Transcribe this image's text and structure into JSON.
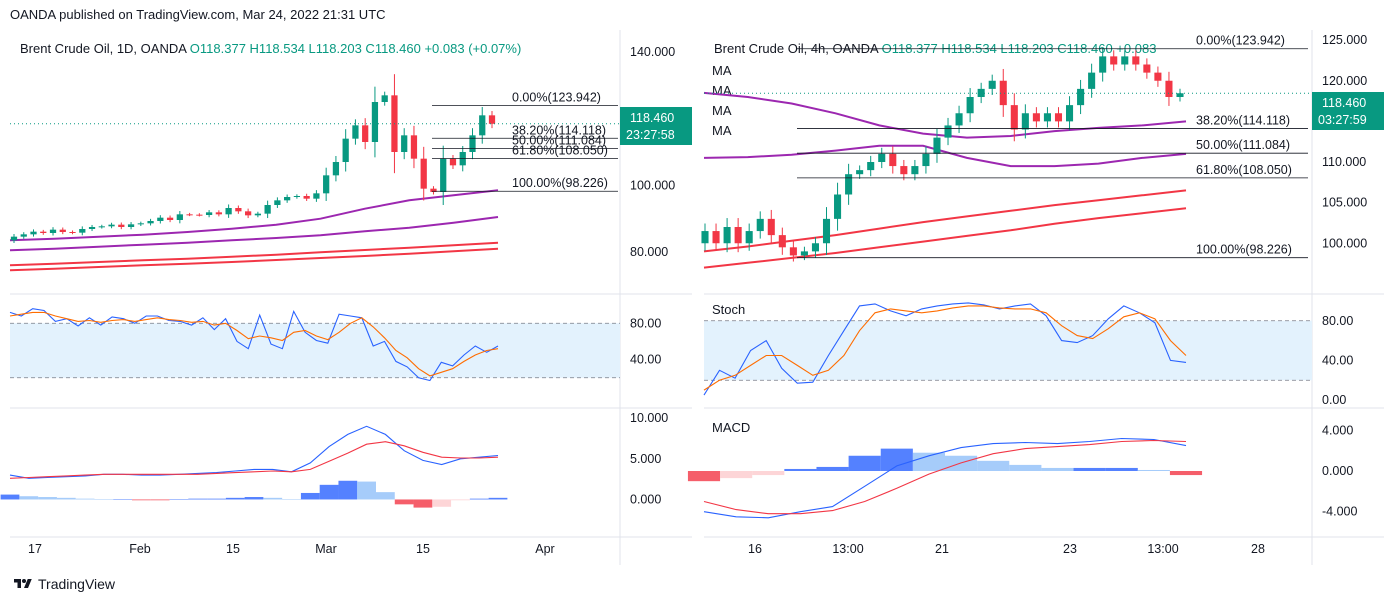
{
  "header": {
    "text": "OANDA published on TradingView.com, Mar 24, 2022 21:31 UTC"
  },
  "footer": {
    "brand": "TradingView",
    "icon": "tradingview-logo-icon"
  },
  "colors": {
    "up": "#089981",
    "down": "#f23645",
    "ma_purple": "#9c27b0",
    "ma_red": "#f23645",
    "stoch_k": "#2962ff",
    "stoch_d": "#ff6d00",
    "macd": "#2962ff",
    "signal": "#f23645",
    "band": "#e3f2fd",
    "price_badge": "#089981"
  },
  "chart_data": [
    {
      "type": "candlestick",
      "panel": "left-daily",
      "title": "Brent Crude Oil, 1D, OANDA",
      "ohlc_label": {
        "O": "O118.377",
        "H": "H118.534",
        "L": "L118.203",
        "C": "C118.460",
        "change": "+0.083 (+0.07%)"
      },
      "x_ticks": [
        "17",
        "Feb",
        "15",
        "Mar",
        "15",
        "Apr"
      ],
      "y_ticks": [
        "140.000",
        "100.000",
        "80.000"
      ],
      "ylim": [
        68,
        146
      ],
      "price_badge": {
        "price": "118.460",
        "countdown": "23:27:58"
      },
      "fib_levels": [
        {
          "label": "0.00%(123.942)",
          "value": 123.942
        },
        {
          "label": "38.20%(114.118)",
          "value": 114.118
        },
        {
          "label": "50.00%(111.084)",
          "value": 111.084
        },
        {
          "label": "61.80%(108.050)",
          "value": 108.05
        },
        {
          "label": "100.00%(98.226)",
          "value": 98.226
        }
      ],
      "candles_close": [
        84.6,
        85.3,
        86.1,
        85.7,
        86.7,
        86.0,
        85.8,
        86.9,
        87.5,
        87.7,
        88.2,
        87.5,
        88.3,
        88.6,
        89.3,
        90.3,
        89.6,
        91.3,
        91.2,
        91.1,
        91.9,
        91.3,
        93.2,
        92.2,
        91.0,
        91.5,
        94.1,
        95.5,
        96.5,
        96.8,
        96.0,
        97.6,
        103.0,
        107.0,
        114.0,
        118.0,
        113.0,
        125.0,
        127.0,
        110.0,
        115.0,
        108.0,
        99.0,
        98.0,
        108.0,
        106.0,
        110.0,
        115.0,
        121.0,
        118.46
      ],
      "candles_open": [
        83.5,
        84.6,
        85.3,
        86.1,
        85.7,
        86.7,
        86.0,
        85.8,
        86.9,
        87.5,
        87.7,
        88.2,
        87.5,
        88.3,
        88.6,
        89.3,
        90.3,
        89.6,
        91.3,
        91.2,
        91.1,
        91.9,
        91.3,
        93.2,
        92.2,
        91.0,
        91.5,
        94.1,
        95.5,
        96.5,
        96.8,
        96.0,
        97.6,
        103.0,
        107.0,
        114.0,
        118.0,
        113.0,
        125.0,
        127.0,
        110.0,
        115.0,
        108.0,
        99.0,
        98.0,
        108.0,
        106.0,
        110.0,
        115.0,
        121.0
      ],
      "ma_series": [
        {
          "color": "purple",
          "values": [
            83.5,
            84.0,
            84.6,
            85.2,
            86.0,
            87.0,
            88.2,
            90.0,
            93.0,
            95.5,
            97.0,
            98.5
          ]
        },
        {
          "color": "purple",
          "values": [
            80.5,
            81.0,
            81.6,
            82.2,
            82.8,
            83.5,
            84.2,
            85.0,
            86.2,
            87.3,
            88.8,
            90.5
          ]
        },
        {
          "color": "red",
          "values": [
            76.0,
            76.5,
            77.0,
            77.5,
            78.0,
            78.6,
            79.2,
            79.9,
            80.6,
            81.3,
            82.0,
            82.8
          ]
        },
        {
          "color": "red",
          "values": [
            74.5,
            75.0,
            75.5,
            76.0,
            76.5,
            77.0,
            77.6,
            78.2,
            78.8,
            79.5,
            80.2,
            81.0
          ]
        }
      ],
      "stoch": {
        "y_ticks": [
          "80.00",
          "40.00"
        ],
        "k": [
          92,
          88,
          96,
          94,
          82,
          85,
          77,
          86,
          78,
          87,
          85,
          80,
          88,
          88,
          83,
          82,
          78,
          86,
          73,
          85,
          60,
          52,
          89,
          57,
          52,
          93,
          70,
          61,
          58,
          90,
          88,
          86,
          55,
          60,
          38,
          32,
          20,
          17,
          37,
          33,
          45,
          55,
          48,
          55
        ],
        "d": [
          88,
          90,
          92,
          92,
          88,
          85,
          82,
          83,
          81,
          83,
          84,
          82,
          84,
          86,
          84,
          83,
          81,
          82,
          78,
          80,
          72,
          63,
          66,
          64,
          61,
          70,
          72,
          66,
          62,
          70,
          80,
          86,
          76,
          64,
          50,
          42,
          30,
          22,
          26,
          30,
          38,
          45,
          50,
          52
        ]
      },
      "macd": {
        "y_ticks": [
          "10.000",
          "5.000",
          "0.000"
        ],
        "macd": [
          3.0,
          2.6,
          2.7,
          2.8,
          2.9,
          3.1,
          3.1,
          3.0,
          3.0,
          3.1,
          3.2,
          3.3,
          3.5,
          3.7,
          3.7,
          3.4,
          4.5,
          6.5,
          8.0,
          9.0,
          8.0,
          6.0,
          4.8,
          4.3,
          5.0,
          5.2,
          5.4
        ],
        "signal": [
          2.6,
          2.7,
          2.8,
          2.9,
          3.0,
          3.1,
          3.1,
          3.1,
          3.1,
          3.1,
          3.1,
          3.2,
          3.3,
          3.4,
          3.5,
          3.4,
          3.7,
          4.7,
          5.7,
          6.8,
          7.1,
          6.6,
          5.8,
          5.2,
          5.1,
          5.1,
          5.2
        ],
        "hist": [
          0.6,
          0.4,
          0.3,
          0.2,
          0.1,
          0.0,
          0.0,
          -0.1,
          -0.1,
          0.0,
          0.1,
          0.1,
          0.2,
          0.3,
          0.2,
          0.0,
          0.8,
          1.8,
          2.3,
          2.2,
          0.9,
          -0.6,
          -1.0,
          -0.9,
          -0.1,
          0.1,
          0.2
        ]
      }
    },
    {
      "type": "candlestick",
      "panel": "right-4h",
      "title": "Brent Crude Oil, 4h, OANDA",
      "ohlc_label": {
        "O": "O118.377",
        "H": "H118.534",
        "L": "L118.203",
        "C": "C118.460",
        "change": "+0.083"
      },
      "ma_labels": [
        "MA",
        "MA",
        "MA",
        "MA"
      ],
      "x_ticks": [
        "16",
        "13:00",
        "21",
        "23",
        "13:00",
        "28"
      ],
      "y_ticks": [
        "125.000",
        "120.000",
        "115.000",
        "110.000",
        "105.000",
        "100.000"
      ],
      "ylim": [
        94,
        126
      ],
      "price_badge": {
        "price": "118.460",
        "countdown": "03:27:59"
      },
      "fib_levels": [
        {
          "label": "0.00%(123.942)",
          "value": 123.942
        },
        {
          "label": "38.20%(114.118)",
          "value": 114.118
        },
        {
          "label": "50.00%(111.084)",
          "value": 111.084
        },
        {
          "label": "61.80%(108.050)",
          "value": 108.05
        },
        {
          "label": "100.00%(98.226)",
          "value": 98.226
        }
      ],
      "candles_close": [
        101.5,
        100.0,
        102.0,
        100.0,
        101.5,
        103.0,
        101.0,
        99.5,
        98.5,
        99.0,
        100.0,
        103.0,
        106.0,
        108.5,
        109.0,
        110.0,
        111.0,
        109.5,
        108.5,
        109.5,
        111.0,
        113.0,
        114.5,
        116.0,
        118.0,
        119.0,
        120.0,
        117.0,
        114.0,
        116.0,
        115.0,
        116.0,
        115.0,
        117.0,
        119.0,
        121.0,
        123.0,
        122.0,
        123.0,
        122.0,
        121.0,
        120.0,
        118.0,
        118.46
      ],
      "candles_open": [
        100.0,
        101.5,
        100.0,
        102.0,
        100.0,
        101.5,
        103.0,
        101.0,
        99.5,
        98.5,
        99.0,
        100.0,
        103.0,
        106.0,
        108.5,
        109.0,
        110.0,
        111.0,
        109.5,
        108.5,
        109.5,
        111.0,
        113.0,
        114.5,
        116.0,
        118.0,
        119.0,
        120.0,
        117.0,
        114.0,
        116.0,
        115.0,
        116.0,
        115.0,
        117.0,
        119.0,
        121.0,
        123.0,
        122.0,
        123.0,
        122.0,
        121.0,
        120.0,
        118.0
      ],
      "ma_series": [
        {
          "color": "purple",
          "values": [
            118.5,
            118.0,
            117.2,
            116.0,
            114.5,
            113.5,
            113.0,
            113.2,
            113.8,
            114.2,
            114.5,
            115.0
          ]
        },
        {
          "color": "purple",
          "values": [
            110.5,
            110.6,
            110.9,
            111.4,
            112.0,
            112.0,
            110.5,
            109.5,
            109.5,
            109.8,
            110.5,
            111.0
          ]
        },
        {
          "color": "red",
          "values": [
            99.0,
            99.6,
            100.3,
            101.0,
            101.8,
            102.6,
            103.3,
            104.0,
            104.7,
            105.3,
            105.9,
            106.5
          ]
        },
        {
          "color": "red",
          "values": [
            97.0,
            97.6,
            98.2,
            98.8,
            99.5,
            100.2,
            100.9,
            101.6,
            102.4,
            103.1,
            103.7,
            104.3
          ]
        }
      ],
      "stoch": {
        "label": "Stoch",
        "y_ticks": [
          "80.00",
          "40.00",
          "0.00"
        ],
        "k": [
          5,
          30,
          22,
          50,
          60,
          32,
          17,
          18,
          45,
          70,
          95,
          97,
          90,
          85,
          92,
          95,
          97,
          98,
          96,
          92,
          95,
          97,
          85,
          60,
          58,
          65,
          82,
          95,
          88,
          78,
          40,
          38
        ],
        "d": [
          10,
          20,
          25,
          35,
          45,
          45,
          35,
          25,
          30,
          45,
          70,
          88,
          92,
          90,
          88,
          90,
          93,
          95,
          95,
          93,
          92,
          92,
          88,
          75,
          65,
          62,
          72,
          84,
          88,
          82,
          60,
          45
        ]
      },
      "macd": {
        "label": "MACD",
        "y_ticks": [
          "4.000",
          "0.000",
          "-4.000"
        ],
        "macd": [
          -4.0,
          -4.5,
          -4.6,
          -4.0,
          -3.5,
          -1.5,
          0.5,
          1.5,
          2.3,
          2.7,
          2.8,
          2.7,
          2.9,
          3.2,
          3.1,
          2.5
        ],
        "signal": [
          -3.0,
          -3.8,
          -4.2,
          -4.2,
          -3.9,
          -3.0,
          -1.7,
          -0.3,
          0.8,
          1.7,
          2.2,
          2.4,
          2.6,
          2.9,
          3.0,
          2.9
        ],
        "hist": [
          -1.0,
          -0.7,
          -0.4,
          0.2,
          0.4,
          1.5,
          2.2,
          1.8,
          1.5,
          1.0,
          0.6,
          0.3,
          0.3,
          0.3,
          0.1,
          -0.4
        ]
      }
    }
  ]
}
